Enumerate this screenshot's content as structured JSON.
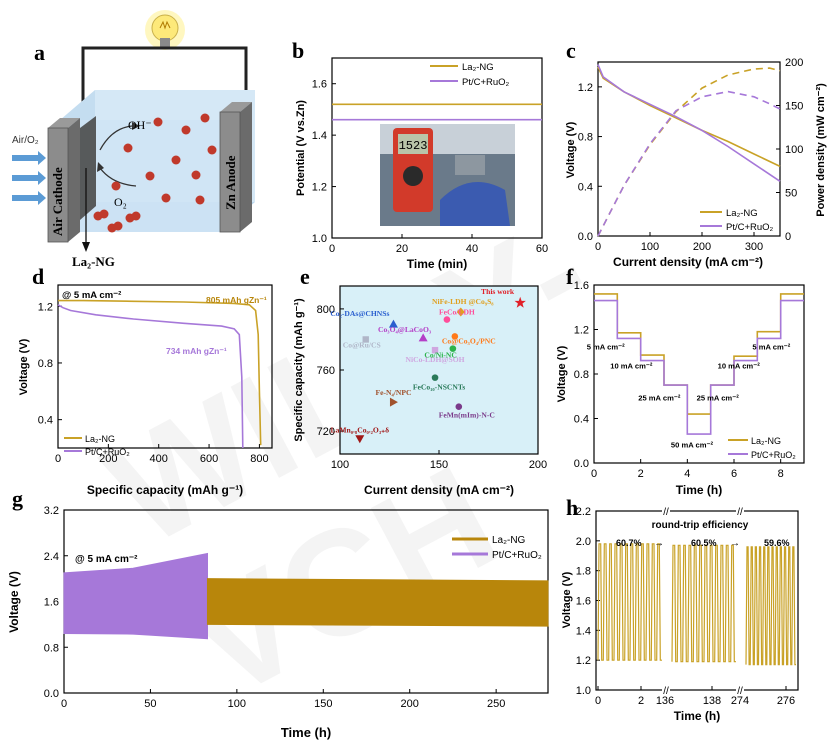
{
  "panel_labels": [
    "a",
    "b",
    "c",
    "d",
    "e",
    "f",
    "g",
    "h"
  ],
  "colors": {
    "la2ng": "#c9a227",
    "ptc": "#a678d9",
    "gold_dark": "#b8860b"
  },
  "watermark": "WILEY-VCH",
  "schematic": {
    "air_label": "Air/O₂",
    "cathode_label": "Air Cathode",
    "anode_label": "Zn Anode",
    "oh_label": "OH⁻",
    "o2_label": "O₂",
    "catalyst_label": "La₂-NG"
  },
  "chart_data": [
    {
      "panel": "b",
      "type": "line",
      "xlabel": "Time (min)",
      "ylabel": "Potential (V vs.Zn)",
      "xlim": [
        0,
        60
      ],
      "ylim": [
        1.0,
        1.7
      ],
      "xticks": [
        0,
        20,
        40,
        60
      ],
      "yticks": [
        1.0,
        1.2,
        1.4,
        1.6
      ],
      "series": [
        {
          "name": "La₂-NG",
          "x": [
            0,
            60
          ],
          "values": [
            1.52,
            1.52
          ]
        },
        {
          "name": "Pt/C+RuO₂",
          "x": [
            0,
            60
          ],
          "values": [
            1.46,
            1.46
          ]
        }
      ],
      "inset_reading": "1523"
    },
    {
      "panel": "c",
      "type": "line",
      "xlabel": "Current density (mA cm⁻²)",
      "ylabel": "Voltage (V)",
      "y2label": "Power density (mW cm⁻²)",
      "xlim": [
        0,
        350
      ],
      "ylim": [
        0,
        1.4
      ],
      "y2lim": [
        0,
        200
      ],
      "xticks": [
        0,
        100,
        200,
        300
      ],
      "yticks": [
        0.0,
        0.4,
        0.8,
        1.2
      ],
      "y2ticks": [
        0,
        50,
        100,
        150,
        200
      ],
      "series": [
        {
          "name": "La₂-NG",
          "x": [
            0,
            10,
            50,
            100,
            150,
            200,
            250,
            300,
            350
          ],
          "values": [
            1.36,
            1.27,
            1.16,
            1.05,
            0.95,
            0.85,
            0.76,
            0.66,
            0.56
          ]
        },
        {
          "name": "Pt/C+RuO₂",
          "x": [
            0,
            10,
            50,
            100,
            150,
            200,
            250,
            300,
            350
          ],
          "values": [
            1.38,
            1.28,
            1.16,
            1.06,
            0.96,
            0.85,
            0.72,
            0.58,
            0.44
          ]
        },
        {
          "name": "La₂-NG power",
          "axis": "y2",
          "x": [
            0,
            50,
            100,
            150,
            200,
            250,
            300,
            330,
            350
          ],
          "values": [
            0,
            58,
            105,
            143,
            170,
            185,
            192,
            193,
            190
          ]
        },
        {
          "name": "Pt/C+RuO₂ power",
          "axis": "y2",
          "x": [
            0,
            50,
            100,
            150,
            200,
            250,
            300,
            330,
            350
          ],
          "values": [
            0,
            58,
            106,
            144,
            160,
            166,
            160,
            152,
            146
          ]
        }
      ]
    },
    {
      "panel": "d",
      "type": "line",
      "xlabel": "Specific capacity (mAh g⁻¹)",
      "ylabel": "Voltage (V)",
      "xlim": [
        0,
        850
      ],
      "ylim": [
        0.2,
        1.35
      ],
      "xticks": [
        0,
        200,
        400,
        600,
        800
      ],
      "yticks": [
        0.4,
        0.8,
        1.2
      ],
      "title": "@ 5 mA cm⁻²",
      "annotations": [
        "805 mAh gZn⁻¹",
        "734 mAh gZn⁻¹"
      ],
      "series": [
        {
          "name": "La₂-NG",
          "x": [
            0,
            100,
            300,
            500,
            700,
            760,
            785,
            795,
            800,
            805
          ],
          "values": [
            1.24,
            1.24,
            1.235,
            1.23,
            1.22,
            1.21,
            1.17,
            1.0,
            0.6,
            0.22
          ]
        },
        {
          "name": "Pt/C+RuO₂",
          "x": [
            0,
            20,
            50,
            150,
            300,
            500,
            650,
            700,
            720,
            730,
            734
          ],
          "values": [
            1.21,
            1.19,
            1.17,
            1.14,
            1.11,
            1.08,
            1.06,
            1.04,
            1.0,
            0.7,
            0.2
          ]
        }
      ]
    },
    {
      "panel": "e",
      "type": "scatter",
      "xlabel": "Current density (mA cm⁻²)",
      "ylabel": "Specific capacity (mAh g⁻¹)",
      "xlim": [
        100,
        200
      ],
      "ylim": [
        705,
        815
      ],
      "xticks": [
        100,
        150,
        200
      ],
      "yticks": [
        720,
        760,
        800
      ],
      "points": [
        {
          "label": "This work",
          "x": 191,
          "y": 804,
          "color": "#e0212a",
          "marker": "star"
        },
        {
          "label": "NiFe-LDH @Co₉S₈",
          "x": 161,
          "y": 798,
          "color": "#e0a020",
          "marker": "diamond"
        },
        {
          "label": "Co₂-DAs@CHNSs",
          "x": 127,
          "y": 790,
          "color": "#2a5fcf",
          "marker": "triangle"
        },
        {
          "label": "FeCo/LDH",
          "x": 154,
          "y": 793,
          "color": "#ff4d9a",
          "marker": "circle"
        },
        {
          "label": "Co@Ru/CS",
          "x": 113,
          "y": 780,
          "color": "#b0b6c8",
          "marker": "square"
        },
        {
          "label": "Co₃O₄@LaCoO₃",
          "x": 142,
          "y": 781,
          "color": "#b43fc7",
          "marker": "triangle"
        },
        {
          "label": "Co@Co₃O₄/PNC",
          "x": 158,
          "y": 782,
          "color": "#ff7a1a",
          "marker": "circle"
        },
        {
          "label": "NiCo-LDH@SOH",
          "x": 148,
          "y": 773,
          "color": "#cfa6e0",
          "marker": "square"
        },
        {
          "label": "Co/Ni-NC",
          "x": 157,
          "y": 774,
          "color": "#2bb34a",
          "marker": "circle"
        },
        {
          "label": "FeCo₁₀-NSCNTs",
          "x": 148,
          "y": 755,
          "color": "#2a7a5a",
          "marker": "circle"
        },
        {
          "label": "Fe-N₄/NPC",
          "x": 127,
          "y": 739,
          "color": "#a0522d",
          "marker": "triangle-right"
        },
        {
          "label": "FeMn(mIm)-N-C",
          "x": 160,
          "y": 736,
          "color": "#7a3a8a",
          "marker": "circle"
        },
        {
          "label": "LaMn₀.₈Co₀.₂O₃₊δ",
          "x": 110,
          "y": 715,
          "color": "#a01818",
          "marker": "triangle-down"
        }
      ]
    },
    {
      "panel": "f",
      "type": "line",
      "xlabel": "Time (h)",
      "ylabel": "Voltage (V)",
      "xlim": [
        0,
        9
      ],
      "ylim": [
        0,
        1.6
      ],
      "xticks": [
        0,
        2,
        4,
        6,
        8
      ],
      "yticks": [
        0.0,
        0.4,
        0.8,
        1.2,
        1.6
      ],
      "step_labels": [
        "5 mA cm⁻²",
        "10 mA cm⁻²",
        "25 mA cm⁻²",
        "50 mA cm⁻²",
        "25 mA cm⁻²",
        "10 mA cm⁻²",
        "5 mA cm⁻²"
      ],
      "series": [
        {
          "name": "La₂-NG",
          "x": [
            0,
            1,
            2,
            3,
            4,
            5,
            6,
            7,
            8,
            9
          ],
          "values": [
            1.52,
            1.17,
            0.97,
            0.7,
            0.44,
            0.7,
            0.96,
            1.18,
            1.52,
            1.52
          ]
        },
        {
          "name": "Pt/C+RuO₂",
          "x": [
            0,
            1,
            2,
            3,
            4,
            5,
            6,
            7,
            8,
            9
          ],
          "values": [
            1.46,
            1.12,
            0.92,
            0.7,
            0.26,
            0.7,
            0.92,
            1.12,
            1.46,
            1.46
          ]
        }
      ]
    },
    {
      "panel": "g",
      "type": "area",
      "xlabel": "Time (h)",
      "ylabel": "Voltage (V)",
      "xlim": [
        0,
        280
      ],
      "ylim": [
        0,
        3.2
      ],
      "xticks": [
        0,
        50,
        100,
        150,
        200,
        250
      ],
      "yticks": [
        0.0,
        0.8,
        1.6,
        2.4,
        3.2
      ],
      "title": "@ 5 mA cm⁻²",
      "series": [
        {
          "name": "La₂-NG",
          "x": [
            0,
            280
          ],
          "charge": [
            2.0,
            1.96
          ],
          "discharge": [
            1.2,
            1.17
          ]
        },
        {
          "name": "Pt/C+RuO₂",
          "x": [
            0,
            40,
            83
          ],
          "charge": [
            2.1,
            2.18,
            2.44
          ],
          "discharge": [
            1.04,
            1.03,
            0.95
          ]
        }
      ]
    },
    {
      "panel": "h",
      "type": "line",
      "xlabel": "Time (h)",
      "ylabel": "Voltage (V)",
      "ylim": [
        1.0,
        2.2
      ],
      "yticks": [
        1.0,
        1.2,
        1.4,
        1.6,
        1.8,
        2.0,
        2.2
      ],
      "xticks": [
        "0",
        "2",
        "136",
        "138",
        "274",
        "276"
      ],
      "title": "round-trip efficiency",
      "efficiencies": [
        "60.7%",
        "60.5%",
        "59.6%"
      ],
      "segments": [
        {
          "start": 0,
          "cycles": 12,
          "charge": 1.98,
          "discharge": 1.2
        },
        {
          "start": 134.5,
          "cycles": 12,
          "charge": 1.97,
          "discharge": 1.19
        },
        {
          "start": 273,
          "cycles": 12,
          "charge": 1.96,
          "discharge": 1.17
        }
      ]
    }
  ]
}
